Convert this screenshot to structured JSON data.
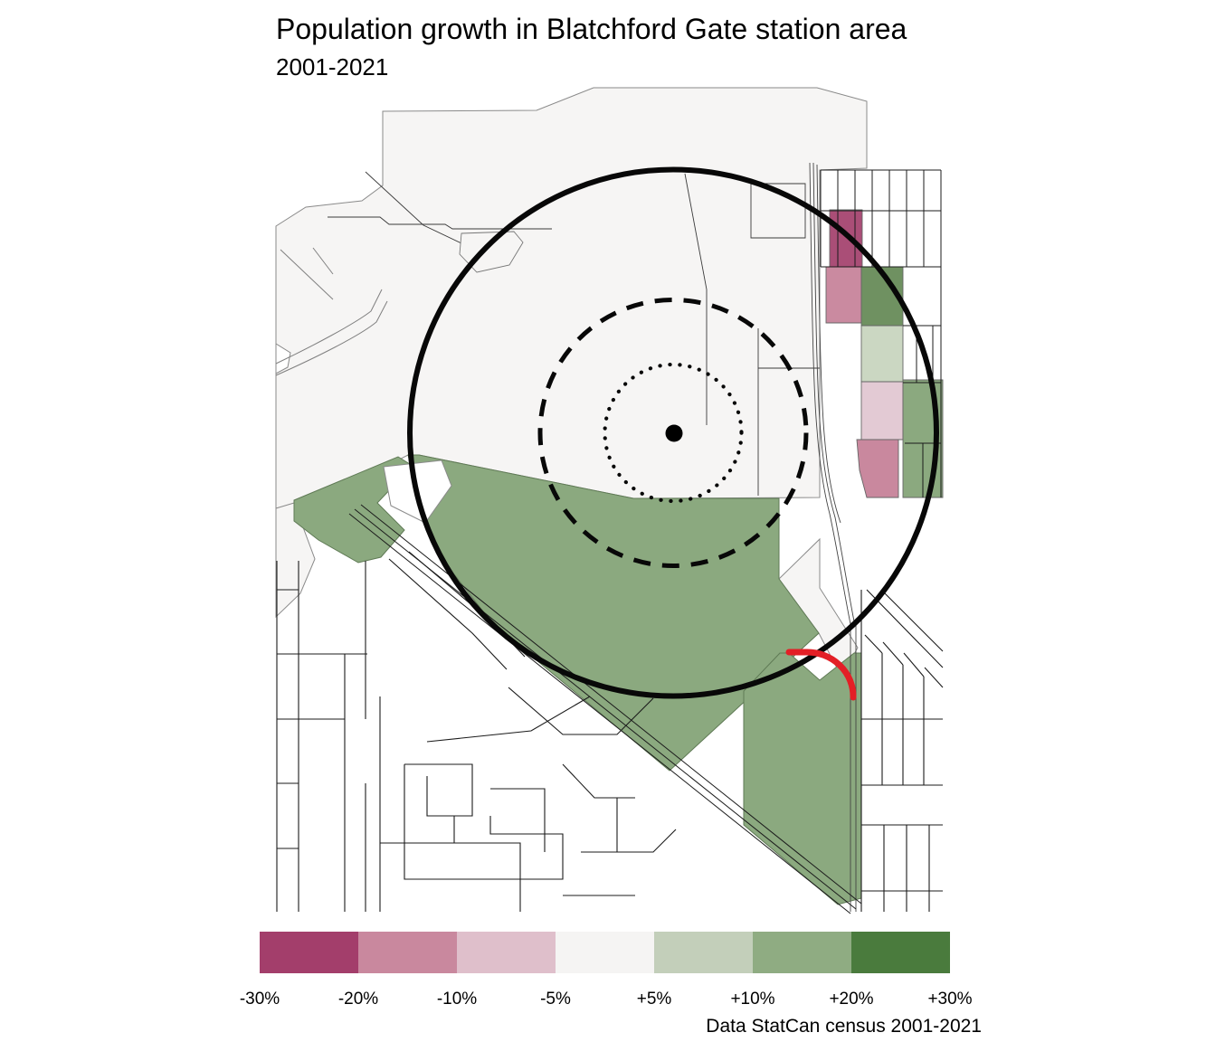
{
  "header": {
    "title": "Population growth in Blatchford Gate station area",
    "subtitle": "2001-2021"
  },
  "footer": {
    "caption": "Data StatCan census 2001-2021"
  },
  "chart_data": {
    "type": "choropleth-map",
    "title": "Population growth in Blatchford Gate station area",
    "subtitle": "2001-2021",
    "caption": "Data StatCan census 2001-2021",
    "legend": {
      "position": "bottom",
      "edge_labels": [
        "-30%",
        "-20%",
        "-10%",
        "-5%",
        "+5%",
        "+10%",
        "+20%",
        "+30%"
      ],
      "bin_colors": [
        "#A33E6B",
        "#C9889E",
        "#DFBFCB",
        "#F5F4F3",
        "#C3CFBA",
        "#8FAC82",
        "#4A7B3D"
      ]
    },
    "map": {
      "station_rings": {
        "outer": "solid circle",
        "middle": "dashed circle",
        "inner": "dotted circle",
        "marker": "filled station dot"
      },
      "highlight_color": "#E31F26",
      "region_fills": {
        "tract_base": "#F6F5F4",
        "south_wedge": "#8BA97F",
        "west_green": "#8BA97F",
        "south_strip": "#8BA97F",
        "ne_block_dark_magenta": "#AA4E77",
        "ne_block_pink_west": "#CA8AA0",
        "ne_block_green_mid": "#6F9161",
        "ne_block_light_green": "#CBD7C2",
        "ne_block_light_pink": "#E3CAD4",
        "ne_block_green_east": "#8BA97F",
        "ne_block_pink_south": "#C9889E"
      }
    }
  }
}
